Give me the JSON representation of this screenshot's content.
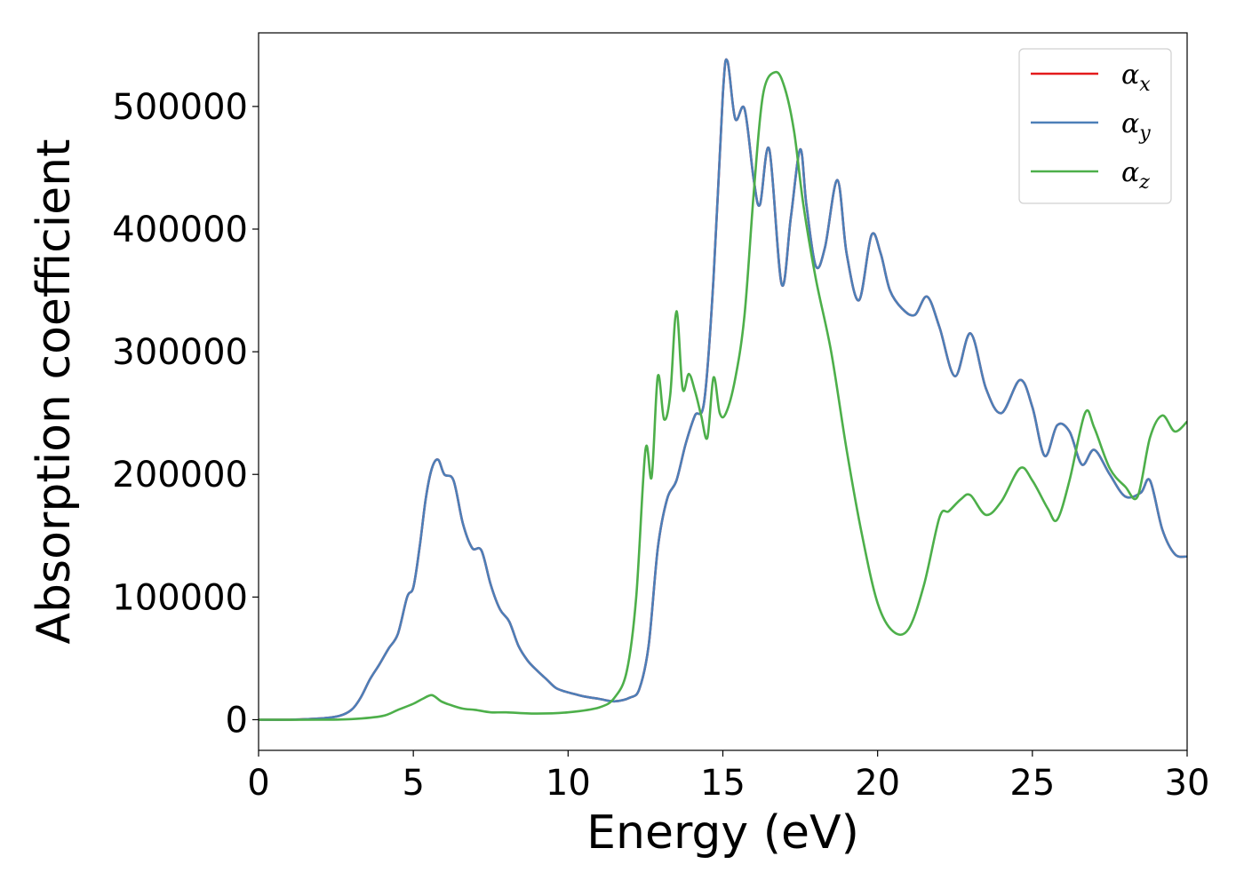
{
  "chart_data": {
    "type": "line",
    "title": "",
    "xlabel": "Energy (eV)",
    "ylabel": "Absorption coefficient",
    "xlim": [
      0,
      30
    ],
    "ylim": [
      -25000,
      560000
    ],
    "xticks": [
      0,
      5,
      10,
      15,
      20,
      25,
      30
    ],
    "yticks": [
      0,
      100000,
      200000,
      300000,
      400000,
      500000
    ],
    "grid": false,
    "legend_position": "top-right",
    "series": [
      {
        "name": "α",
        "subscript": "x",
        "color": "#e41a1c",
        "x": [
          0,
          1,
          2,
          2.6,
          3.0,
          3.3,
          3.6,
          3.9,
          4.2,
          4.5,
          4.8,
          5.0,
          5.2,
          5.4,
          5.6,
          5.8,
          6.0,
          6.3,
          6.6,
          6.9,
          7.2,
          7.5,
          7.8,
          8.1,
          8.4,
          8.7,
          9.0,
          9.3,
          9.6,
          9.9,
          10.2,
          10.5,
          11.0,
          11.5,
          12.0,
          12.3,
          12.6,
          12.9,
          13.2,
          13.5,
          13.8,
          14.1,
          14.4,
          14.7,
          15.0,
          15.15,
          15.4,
          15.7,
          16.0,
          16.2,
          16.5,
          16.9,
          17.2,
          17.5,
          17.7,
          18.0,
          18.3,
          18.7,
          19.0,
          19.4,
          19.8,
          20.1,
          20.4,
          20.8,
          21.2,
          21.6,
          22.0,
          22.5,
          23.0,
          23.5,
          24.0,
          24.6,
          25.0,
          25.4,
          25.8,
          26.2,
          26.6,
          27.0,
          27.5,
          28.0,
          28.5,
          28.8,
          29.2,
          29.6,
          30.0
        ],
        "y": [
          0,
          0,
          1000,
          3000,
          8000,
          18000,
          33000,
          45000,
          58000,
          70000,
          100000,
          108000,
          140000,
          180000,
          205000,
          212000,
          200000,
          195000,
          160000,
          140000,
          138000,
          110000,
          90000,
          80000,
          60000,
          48000,
          40000,
          33000,
          26000,
          23000,
          21000,
          19000,
          17000,
          15000,
          18000,
          25000,
          60000,
          140000,
          180000,
          195000,
          225000,
          248000,
          260000,
          360000,
          510000,
          537000,
          490000,
          498000,
          440000,
          420000,
          465000,
          355000,
          410000,
          465000,
          420000,
          370000,
          385000,
          440000,
          380000,
          342000,
          395000,
          380000,
          350000,
          335000,
          330000,
          345000,
          320000,
          280000,
          315000,
          270000,
          250000,
          277000,
          255000,
          215000,
          240000,
          235000,
          208000,
          220000,
          200000,
          182000,
          185000,
          195000,
          155000,
          135000,
          133000
        ]
      },
      {
        "name": "α",
        "subscript": "y",
        "color": "#4c7fb8",
        "x": [
          0,
          1,
          2,
          2.6,
          3.0,
          3.3,
          3.6,
          3.9,
          4.2,
          4.5,
          4.8,
          5.0,
          5.2,
          5.4,
          5.6,
          5.8,
          6.0,
          6.3,
          6.6,
          6.9,
          7.2,
          7.5,
          7.8,
          8.1,
          8.4,
          8.7,
          9.0,
          9.3,
          9.6,
          9.9,
          10.2,
          10.5,
          11.0,
          11.5,
          12.0,
          12.3,
          12.6,
          12.9,
          13.2,
          13.5,
          13.8,
          14.1,
          14.4,
          14.7,
          15.0,
          15.15,
          15.4,
          15.7,
          16.0,
          16.2,
          16.5,
          16.9,
          17.2,
          17.5,
          17.7,
          18.0,
          18.3,
          18.7,
          19.0,
          19.4,
          19.8,
          20.1,
          20.4,
          20.8,
          21.2,
          21.6,
          22.0,
          22.5,
          23.0,
          23.5,
          24.0,
          24.6,
          25.0,
          25.4,
          25.8,
          26.2,
          26.6,
          27.0,
          27.5,
          28.0,
          28.5,
          28.8,
          29.2,
          29.6,
          30.0
        ],
        "y": [
          0,
          0,
          1000,
          3000,
          8000,
          18000,
          33000,
          45000,
          58000,
          70000,
          100000,
          108000,
          140000,
          180000,
          205000,
          212000,
          200000,
          195000,
          160000,
          140000,
          138000,
          110000,
          90000,
          80000,
          60000,
          48000,
          40000,
          33000,
          26000,
          23000,
          21000,
          19000,
          17000,
          15000,
          18000,
          25000,
          60000,
          140000,
          180000,
          195000,
          225000,
          248000,
          260000,
          360000,
          510000,
          537000,
          490000,
          498000,
          440000,
          420000,
          465000,
          355000,
          410000,
          465000,
          420000,
          370000,
          385000,
          440000,
          380000,
          342000,
          395000,
          380000,
          350000,
          335000,
          330000,
          345000,
          320000,
          280000,
          315000,
          270000,
          250000,
          277000,
          255000,
          215000,
          240000,
          235000,
          208000,
          220000,
          200000,
          182000,
          185000,
          195000,
          155000,
          135000,
          133000
        ]
      },
      {
        "name": "α",
        "subscript": "z",
        "color": "#4daf4a",
        "x": [
          0,
          2,
          3,
          4,
          4.5,
          5.0,
          5.3,
          5.6,
          5.9,
          6.2,
          6.6,
          7.0,
          7.5,
          8.0,
          9.0,
          10.0,
          11.0,
          11.5,
          11.9,
          12.2,
          12.5,
          12.7,
          12.9,
          13.1,
          13.3,
          13.5,
          13.7,
          13.9,
          14.1,
          14.3,
          14.5,
          14.7,
          14.9,
          15.1,
          15.4,
          15.7,
          16.0,
          16.3,
          16.7,
          17.0,
          17.3,
          17.6,
          18.0,
          18.5,
          19.0,
          19.5,
          20.0,
          20.5,
          21.0,
          21.5,
          22.0,
          22.3,
          22.7,
          23.0,
          23.5,
          24.0,
          24.6,
          25.0,
          25.5,
          25.8,
          26.2,
          26.7,
          27.0,
          27.5,
          28.0,
          28.4,
          28.8,
          29.2,
          29.6,
          30.0
        ],
        "y": [
          0,
          0,
          500,
          3000,
          8000,
          13000,
          17000,
          20000,
          15000,
          12000,
          9000,
          8000,
          6000,
          6000,
          5000,
          6000,
          10000,
          18000,
          40000,
          100000,
          220000,
          198000,
          280000,
          245000,
          265000,
          333000,
          270000,
          282000,
          268000,
          248000,
          230000,
          279000,
          250000,
          250000,
          278000,
          330000,
          430000,
          510000,
          528000,
          515000,
          480000,
          420000,
          360000,
          300000,
          220000,
          150000,
          95000,
          72000,
          74000,
          110000,
          165000,
          170000,
          180000,
          183000,
          167000,
          178000,
          205000,
          195000,
          172000,
          163000,
          195000,
          250000,
          238000,
          205000,
          190000,
          182000,
          230000,
          248000,
          235000,
          243000
        ]
      }
    ]
  }
}
